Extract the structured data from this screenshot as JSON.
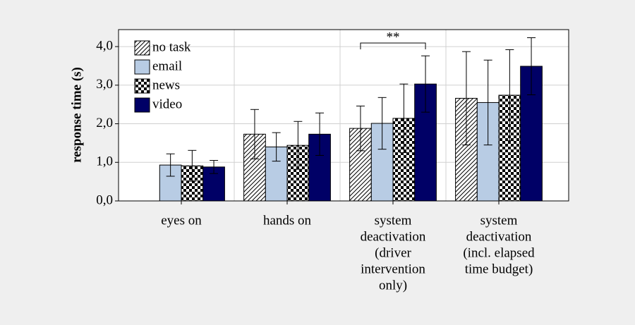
{
  "chart_data": {
    "type": "bar",
    "y_label": "response time (s)",
    "categories": [
      [
        "eyes on"
      ],
      [
        "hands on"
      ],
      [
        "system",
        "deactivation",
        "(driver",
        "intervention",
        "only)"
      ],
      [
        "system",
        "deactivation",
        "(incl. elapsed",
        "time budget)"
      ]
    ],
    "series": [
      {
        "name": "no task",
        "color": "#000000",
        "pattern": "diagonal",
        "values": [
          null,
          1.73,
          1.88,
          2.66
        ],
        "errors": [
          null,
          0.64,
          0.58,
          1.21
        ]
      },
      {
        "name": "email",
        "color": "#b8cce4",
        "pattern": "solid",
        "values": [
          0.93,
          1.4,
          2.01,
          2.55
        ],
        "errors": [
          0.29,
          0.37,
          0.67,
          1.1
        ]
      },
      {
        "name": "news",
        "color": "#000000",
        "pattern": "checker",
        "values": [
          0.91,
          1.44,
          2.14,
          2.74
        ],
        "errors": [
          0.4,
          0.62,
          0.89,
          1.18
        ]
      },
      {
        "name": "video",
        "color": "#000066",
        "pattern": "solid",
        "values": [
          0.88,
          1.73,
          3.03,
          3.49
        ],
        "errors": [
          0.17,
          0.55,
          0.73,
          0.74
        ]
      }
    ],
    "ylim": [
      0,
      4.44
    ],
    "yticks": [
      {
        "value": 0,
        "label": "0,0"
      },
      {
        "value": 1,
        "label": "1,0"
      },
      {
        "value": 2,
        "label": "2,0"
      },
      {
        "value": 3,
        "label": "3,0"
      },
      {
        "value": 4,
        "label": "4,0"
      }
    ],
    "annotations": [
      {
        "text": "**",
        "category": 2
      }
    ],
    "grid": true,
    "legend": "upper left"
  }
}
